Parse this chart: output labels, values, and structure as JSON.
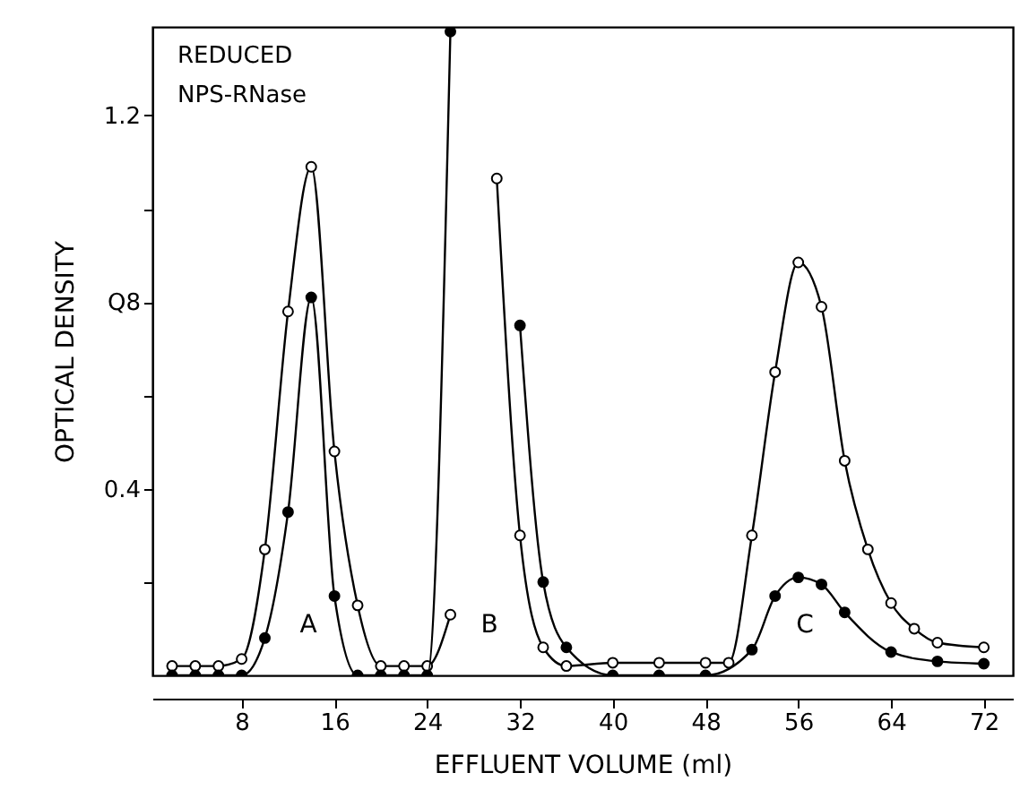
{
  "chart_data": {
    "type": "line",
    "xlabel": "EFFLUENT  VOLUME (ml)",
    "ylabel": "OPTICAL  DENSITY",
    "annotations": [
      "REDUCED",
      "NPS-RNase",
      "A",
      "B",
      "C"
    ],
    "xlim": [
      0.3,
      74.5
    ],
    "ylim": [
      0,
      1.39
    ],
    "xticks": [
      8,
      16,
      24,
      32,
      40,
      48,
      56,
      64,
      72
    ],
    "yticks": [
      {
        "value": 0.2,
        "label": null
      },
      {
        "value": 0.4,
        "label": "0.4"
      },
      {
        "value": 0.6,
        "label": null
      },
      {
        "value": 0.8,
        "label": "Q8"
      },
      {
        "value": 1.0,
        "label": null
      },
      {
        "value": 1.2,
        "label": "1.2"
      }
    ],
    "grid": false,
    "marker": "circle",
    "line_style": "solid",
    "series": [
      {
        "color": "#000000",
        "x": [
          2,
          4,
          6,
          8,
          10,
          12,
          14,
          16,
          18,
          20,
          22,
          24,
          26,
          28,
          30,
          32,
          34,
          36,
          40,
          44,
          48,
          50,
          52,
          54,
          56,
          58,
          60,
          62,
          64,
          66,
          68,
          72
        ],
        "values": [
          0.02,
          0.02,
          0.02,
          0.035,
          0.27,
          0.78,
          1.09,
          0.48,
          0.15,
          0.02,
          0.02,
          0.02,
          0.13,
          null,
          1.065,
          0.3,
          0.06,
          0.02,
          0.027,
          0.027,
          0.027,
          0.027,
          0.3,
          0.65,
          0.885,
          0.79,
          0.46,
          0.27,
          0.155,
          0.1,
          0.07,
          0.06
        ]
      },
      {
        "color": "#000000",
        "x": [
          2,
          4,
          6,
          8,
          10,
          12,
          14,
          16,
          18,
          20,
          22,
          24,
          26,
          28,
          30,
          32,
          34,
          36,
          40,
          44,
          48,
          52,
          54,
          56,
          58,
          60,
          64,
          68,
          72
        ],
        "values": [
          0,
          0,
          0,
          0,
          0.08,
          0.35,
          0.81,
          0.17,
          0,
          0,
          0,
          0,
          1.38,
          null,
          null,
          0.75,
          0.2,
          0.06,
          0,
          0,
          0,
          0.055,
          0.17,
          0.21,
          0.195,
          0.135,
          0.05,
          0.03,
          0.025
        ]
      }
    ]
  }
}
